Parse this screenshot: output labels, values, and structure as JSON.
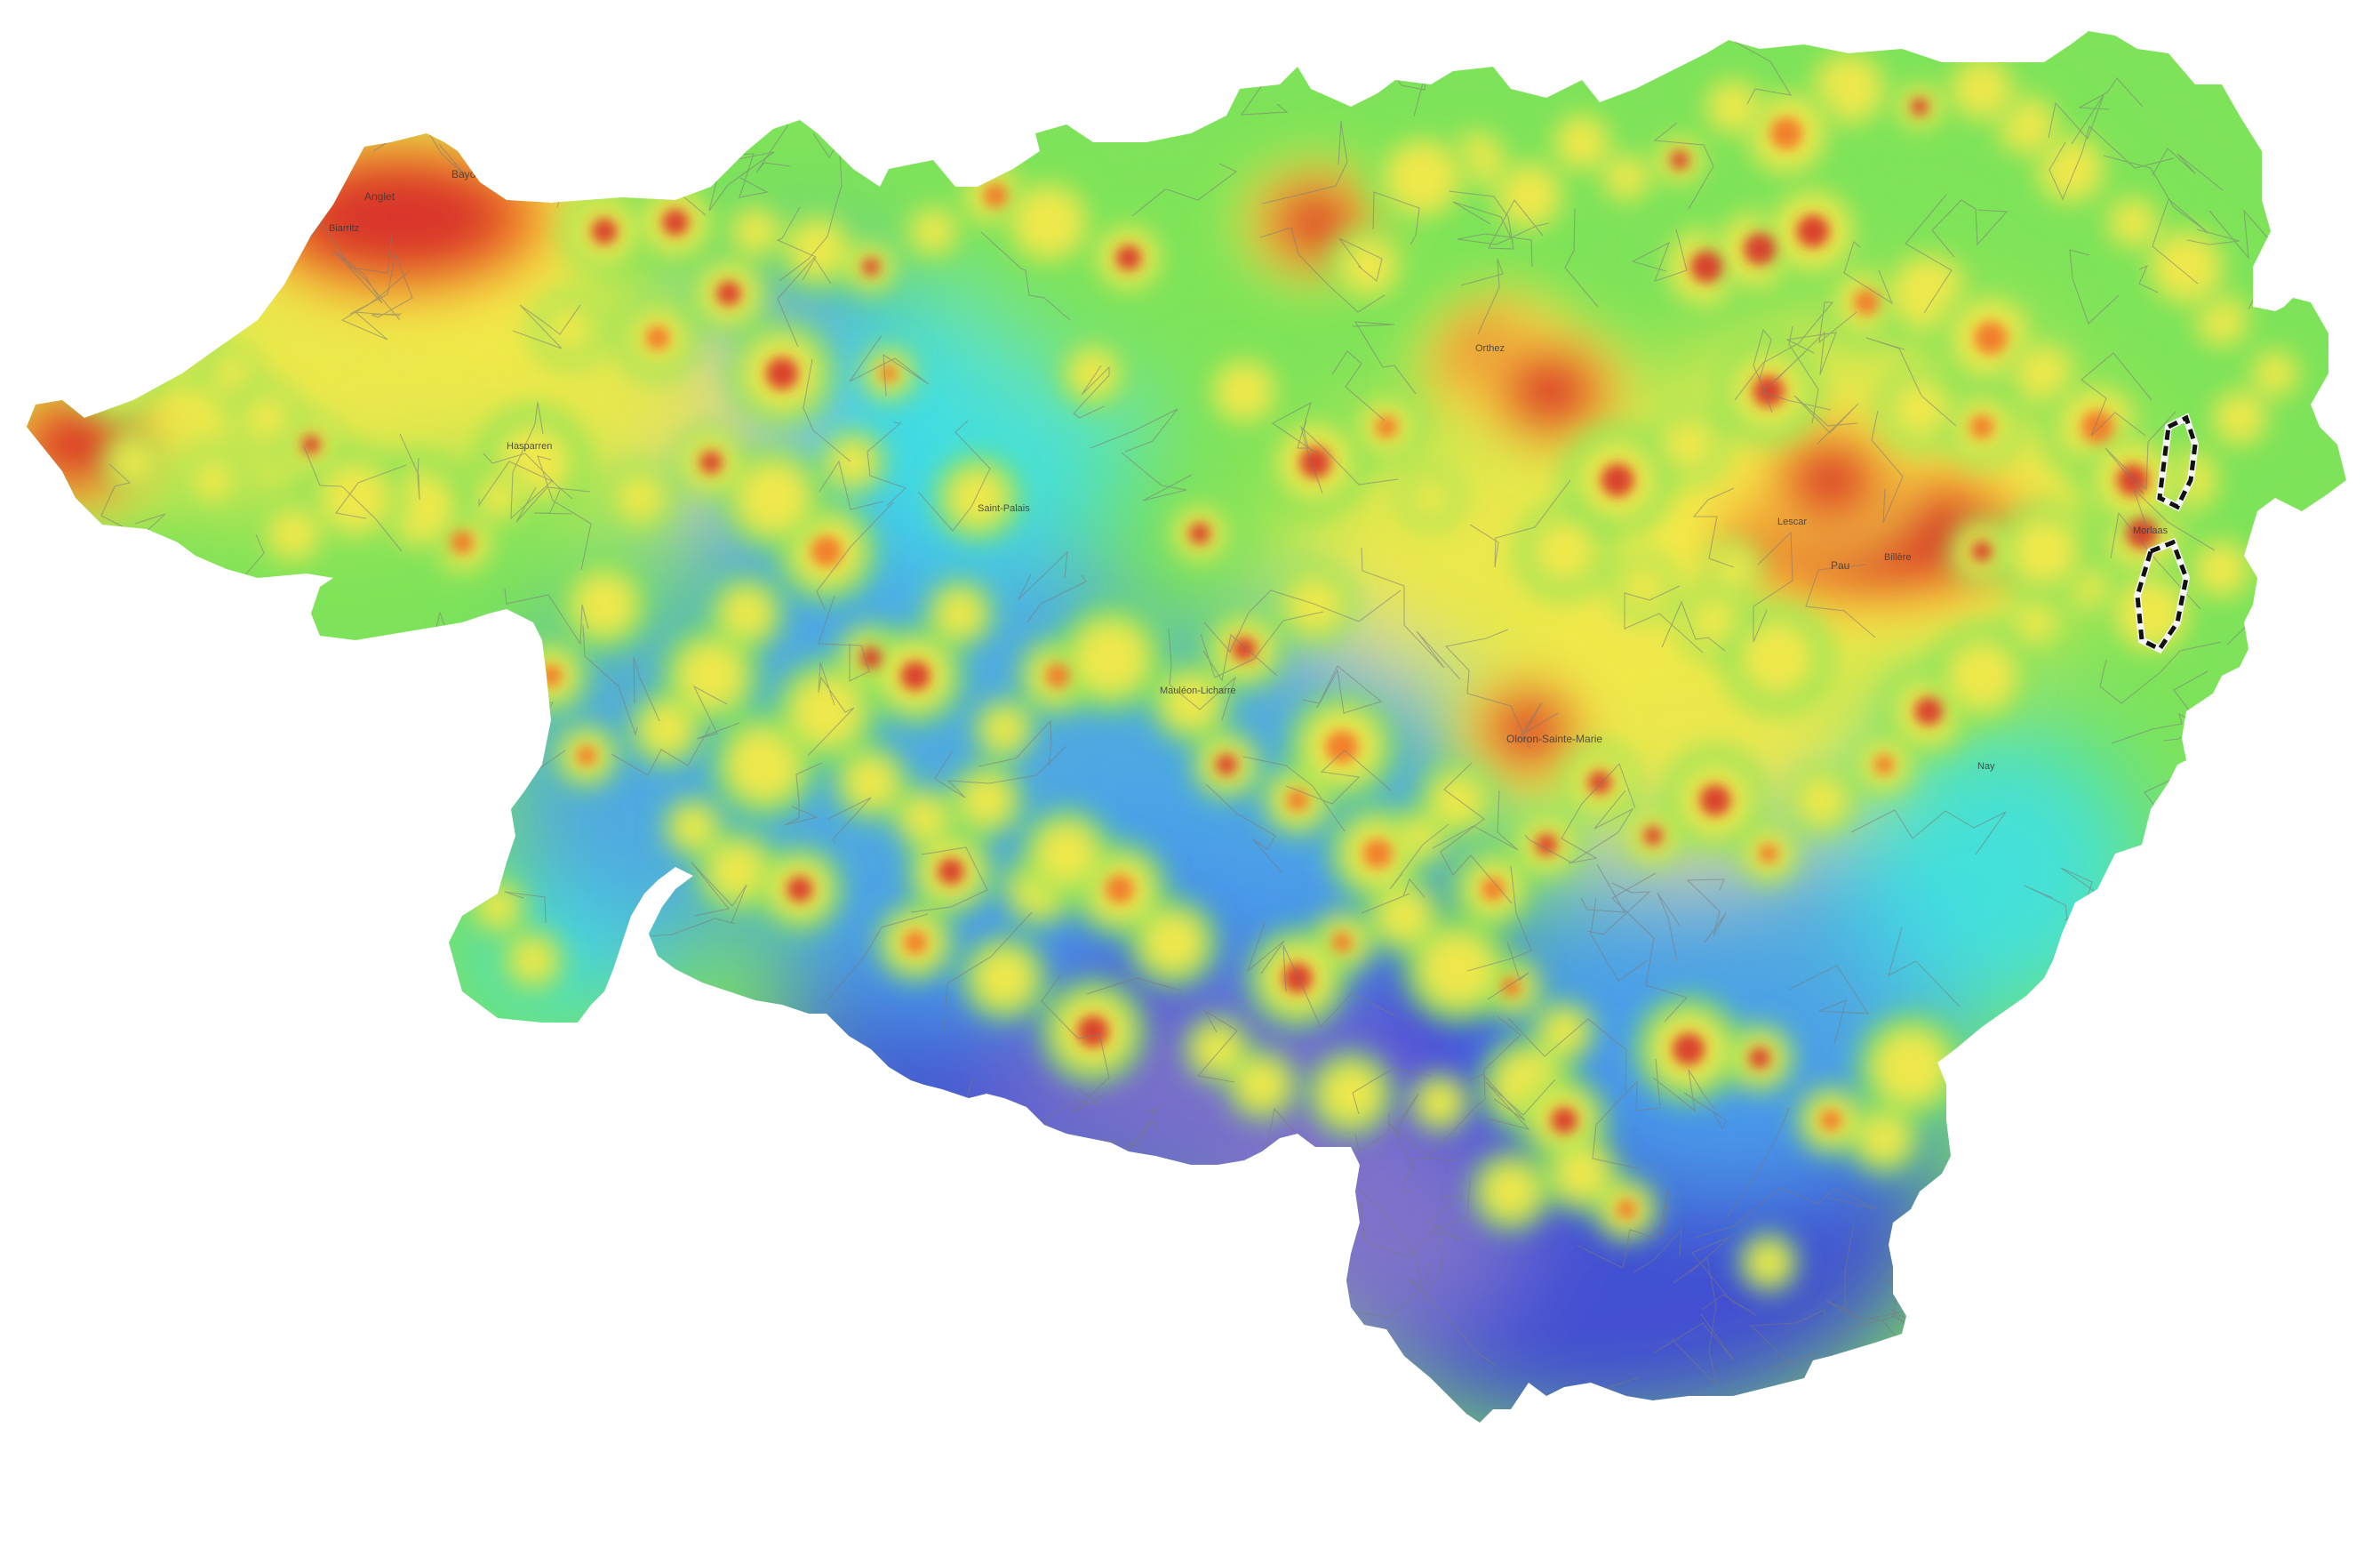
{
  "map": {
    "type": "heatmap-choropleth",
    "subject": "light pollution intensity (radiance) over a département with commune boundaries",
    "palette": {
      "very_high": "#d7302a",
      "high": "#f2732a",
      "medium_high": "#f6e84a",
      "medium": "#7ee35a",
      "medium_low": "#3fe0e8",
      "low": "#4aa3ee",
      "very_low": "#3b3fe0",
      "lowest": "#8577c9"
    },
    "border": {
      "style": "dashed black and white",
      "colors": {
        "dash": "#111111",
        "gap": "#f5f5f5"
      }
    },
    "communes": {
      "line_color": "#7a7a7a"
    },
    "labels": [
      {
        "id": "bayonne",
        "text": "Bayonne"
      },
      {
        "id": "anglet",
        "text": "Anglet"
      },
      {
        "id": "biarritz",
        "text": "Biarritz"
      },
      {
        "id": "hasparren",
        "text": "Hasparren"
      },
      {
        "id": "orthez",
        "text": "Orthez"
      },
      {
        "id": "lescar",
        "text": "Lescar"
      },
      {
        "id": "pau",
        "text": "Pau"
      },
      {
        "id": "billere",
        "text": "Billère"
      },
      {
        "id": "oloron",
        "text": "Oloron-Sainte-Marie"
      },
      {
        "id": "mauleon",
        "text": "Mauléon-Licharre"
      },
      {
        "id": "nay",
        "text": "Nay"
      },
      {
        "id": "saint-palais",
        "text": "Saint-Palais"
      },
      {
        "id": "morlaas",
        "text": "Morlaas"
      }
    ]
  }
}
